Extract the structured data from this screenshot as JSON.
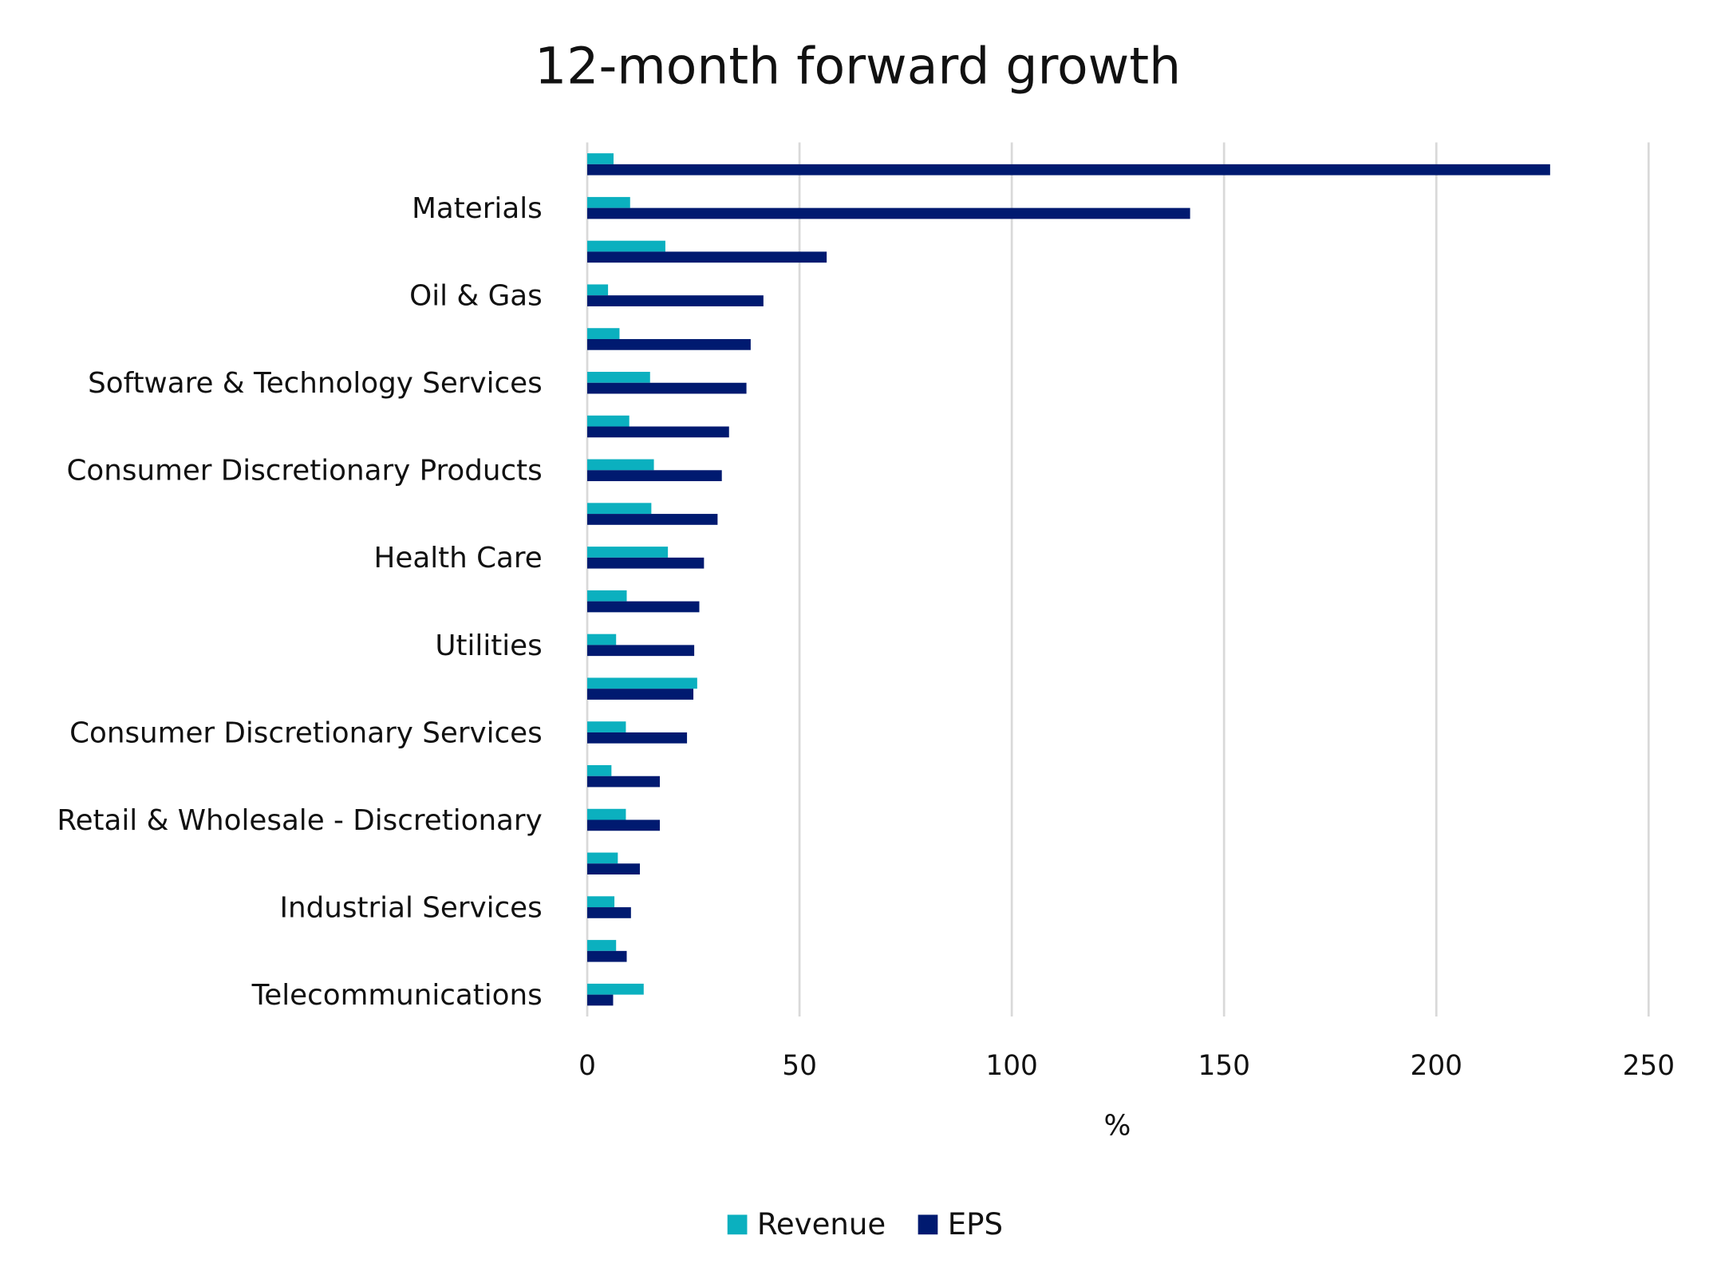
{
  "chart_data": {
    "type": "bar",
    "orientation": "horizontal",
    "title": "12-month forward growth",
    "xlabel": "%",
    "ylabel": "",
    "xlim": [
      0,
      250
    ],
    "xticks": [
      "0",
      "50",
      "100",
      "150",
      "200",
      "250"
    ],
    "grid": "vertical",
    "legend_position": "bottom",
    "categories": [
      "",
      "Materials",
      "",
      "Oil & Gas",
      "",
      "Software & Technology Services",
      "",
      "Consumer Discretionary Products",
      "",
      "Health Care",
      "",
      "Utilities",
      "",
      "Consumer Discretionary Services",
      "",
      "Retail & Wholesale - Discretionary",
      "",
      "Industrial Services",
      "",
      "Telecommunications"
    ],
    "series": [
      {
        "name": "Revenue",
        "color": "#0BB0BF",
        "values": [
          6.2,
          10.1,
          18.4,
          4.9,
          7.6,
          14.8,
          9.9,
          15.7,
          15.1,
          19.0,
          9.3,
          6.8,
          25.9,
          9.1,
          5.7,
          9.1,
          7.2,
          6.4,
          6.8,
          13.3
        ]
      },
      {
        "name": "EPS",
        "color": "#001A70",
        "values": [
          226.8,
          142.0,
          56.4,
          41.5,
          38.5,
          37.5,
          33.4,
          31.7,
          30.7,
          27.5,
          26.4,
          25.2,
          25.0,
          23.5,
          17.1,
          17.1,
          12.4,
          10.3,
          9.3,
          6.1
        ]
      }
    ]
  }
}
